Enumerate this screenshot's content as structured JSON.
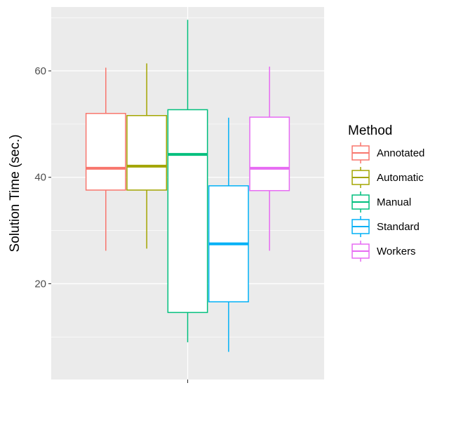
{
  "chart_data": {
    "type": "boxplot",
    "title": "",
    "xlabel": "",
    "ylabel": "Solution Time (sec.)",
    "ylim": [
      2,
      72
    ],
    "yticks": [
      20,
      40,
      60
    ],
    "grid": true,
    "legend": {
      "title": "Method",
      "position": "right"
    },
    "series": [
      {
        "name": "Annotated",
        "color": "#F8766D",
        "min": 26.2,
        "q1": 37.6,
        "median": 41.7,
        "q3": 52.0,
        "max": 60.6
      },
      {
        "name": "Automatic",
        "color": "#A3A500",
        "min": 26.6,
        "q1": 37.6,
        "median": 42.1,
        "q3": 51.6,
        "max": 61.4
      },
      {
        "name": "Manual",
        "color": "#00BF7D",
        "min": 9.0,
        "q1": 14.6,
        "median": 44.3,
        "q3": 52.7,
        "max": 69.6
      },
      {
        "name": "Standard",
        "color": "#00B0F6",
        "min": 7.2,
        "q1": 16.6,
        "median": 27.5,
        "q3": 38.4,
        "max": 51.2
      },
      {
        "name": "Workers",
        "color": "#E76BF3",
        "min": 26.2,
        "q1": 37.5,
        "median": 41.7,
        "q3": 51.3,
        "max": 60.8
      }
    ]
  }
}
